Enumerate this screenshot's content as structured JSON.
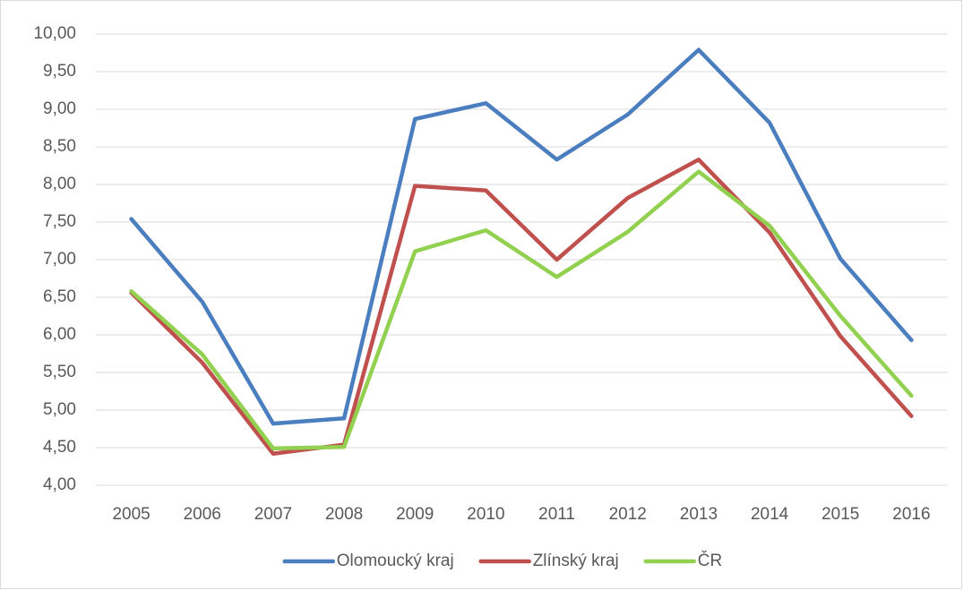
{
  "chart_data": {
    "type": "line",
    "categories": [
      "2005",
      "2006",
      "2007",
      "2008",
      "2009",
      "2010",
      "2011",
      "2012",
      "2013",
      "2014",
      "2015",
      "2016"
    ],
    "series": [
      {
        "name": "Olomoucký kraj",
        "color": "#4a7ebf",
        "values": [
          7.54,
          6.44,
          4.82,
          4.89,
          8.87,
          9.08,
          8.33,
          8.93,
          9.79,
          8.82,
          7.01,
          5.93
        ]
      },
      {
        "name": "Zlínský kraj",
        "color": "#c0504d",
        "values": [
          6.56,
          5.63,
          4.42,
          4.54,
          7.98,
          7.92,
          7.0,
          7.82,
          8.33,
          7.36,
          5.98,
          4.92
        ]
      },
      {
        "name": "ČR",
        "color": "#92d050",
        "values": [
          6.58,
          5.74,
          4.49,
          4.51,
          7.11,
          7.39,
          6.77,
          7.37,
          8.17,
          7.45,
          6.25,
          5.19
        ]
      }
    ],
    "ylim": [
      4,
      10
    ],
    "yticks": [
      {
        "value": 4,
        "label": "4,00"
      },
      {
        "value": 4.5,
        "label": "4,50"
      },
      {
        "value": 5,
        "label": "5,00"
      },
      {
        "value": 5.5,
        "label": "5,50"
      },
      {
        "value": 6,
        "label": "6,00"
      },
      {
        "value": 6.5,
        "label": "6,50"
      },
      {
        "value": 7,
        "label": "7,00"
      },
      {
        "value": 7.5,
        "label": "7,50"
      },
      {
        "value": 8,
        "label": "8,00"
      },
      {
        "value": 8.5,
        "label": "8,50"
      },
      {
        "value": 9,
        "label": "9,00"
      },
      {
        "value": 9.5,
        "label": "9,50"
      },
      {
        "value": 10,
        "label": "10,00"
      }
    ],
    "grid": true,
    "legend": "bottom"
  }
}
